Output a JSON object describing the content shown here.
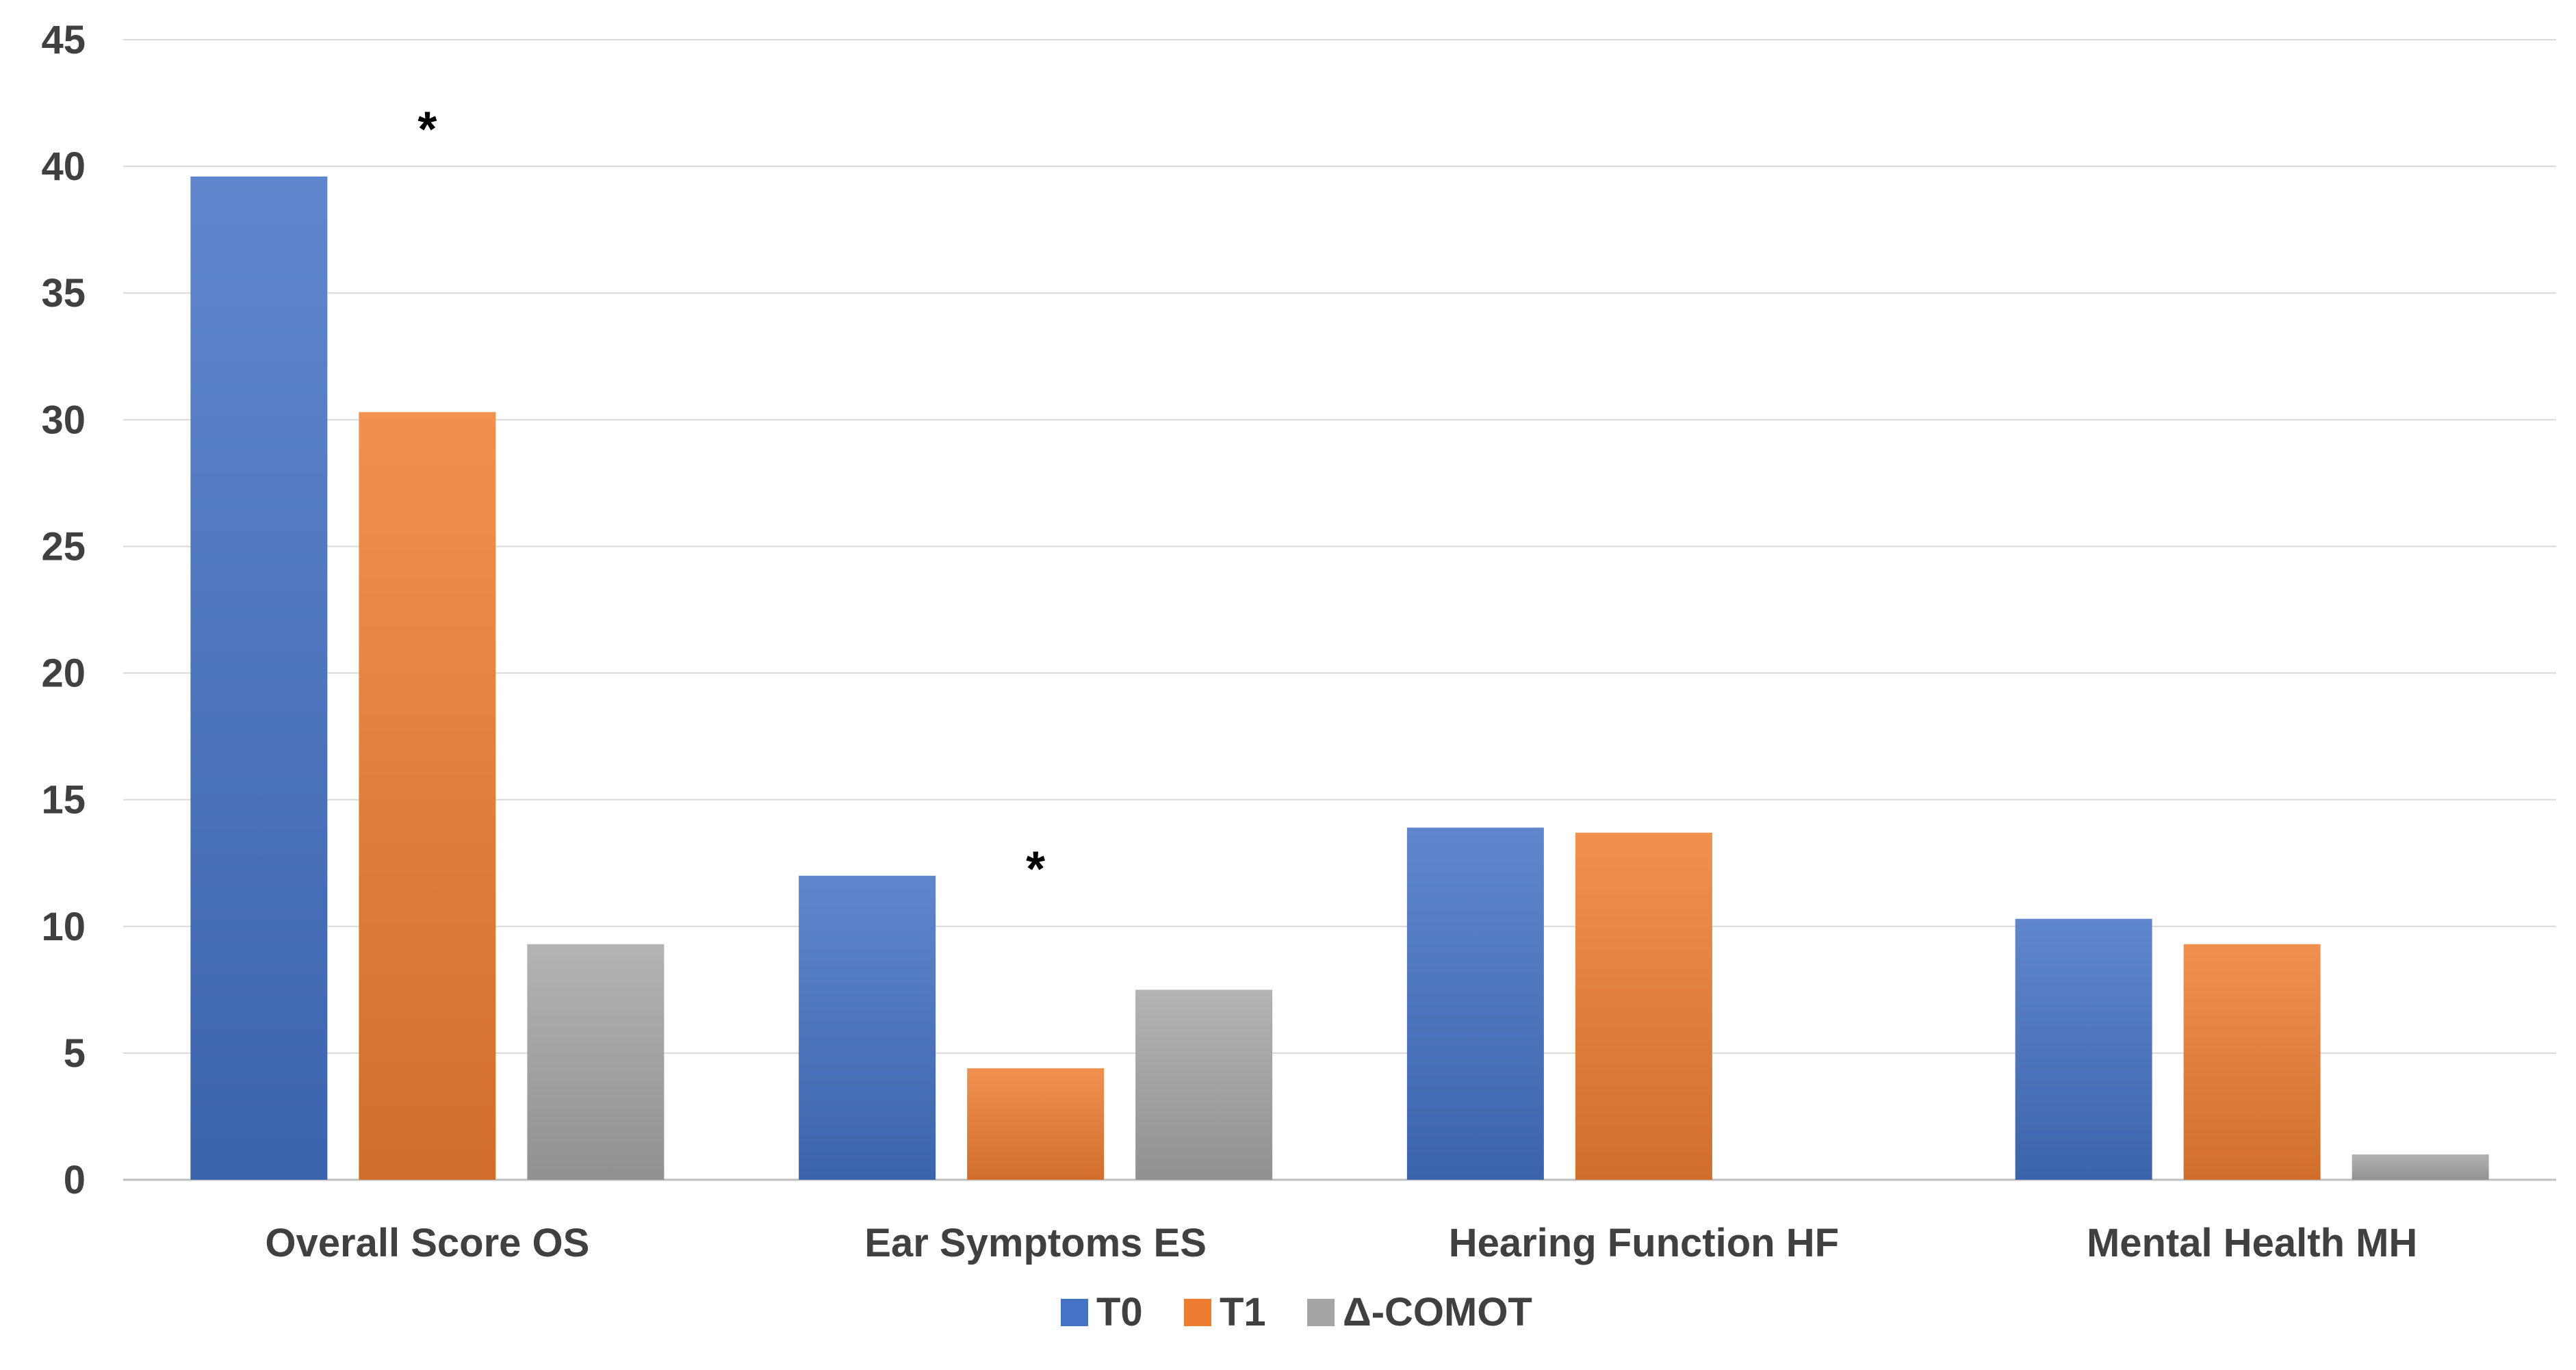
{
  "chart_data": {
    "type": "bar",
    "title": "",
    "xlabel": "",
    "ylabel": "",
    "ylim": [
      0,
      45
    ],
    "ytick_step": 5,
    "yticks": [
      "0",
      "5",
      "10",
      "15",
      "20",
      "25",
      "30",
      "35",
      "40",
      "45"
    ],
    "grid": true,
    "legend_position": "bottom-center",
    "categories": [
      "Overall Score OS",
      "Ear Symptoms ES",
      "Hearing Function HF",
      "Mental Health MH"
    ],
    "series": [
      {
        "name": "T0",
        "color": "#4472c4",
        "values": [
          39.6,
          12.0,
          13.9,
          10.3
        ]
      },
      {
        "name": "T1",
        "color": "#ed7d31",
        "values": [
          30.3,
          4.4,
          13.7,
          9.3
        ]
      },
      {
        "name": "Δ-COMOT",
        "color": "#a5a5a5",
        "values": [
          9.3,
          7.5,
          0,
          1.0
        ]
      }
    ],
    "annotations": [
      {
        "text": "*",
        "category_index": 0,
        "series_index": 1,
        "value": 41.5
      },
      {
        "text": "*",
        "category_index": 1,
        "series_index": 1,
        "value": 12.3
      }
    ]
  }
}
